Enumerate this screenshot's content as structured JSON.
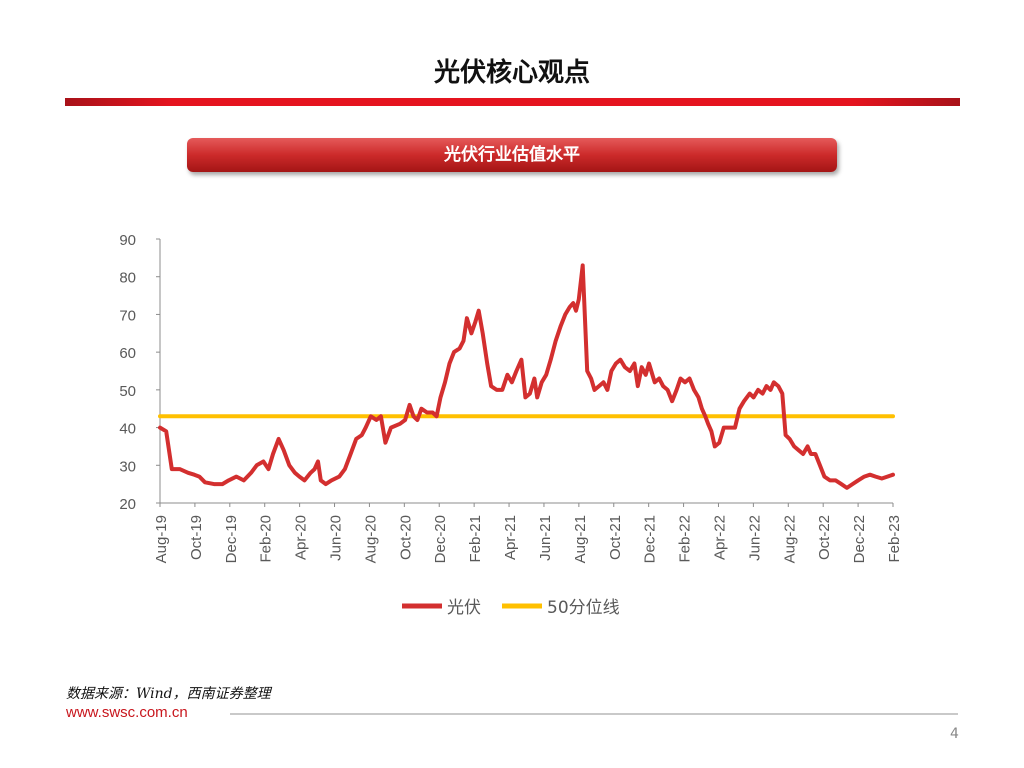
{
  "slide": {
    "title": "光伏核心观点",
    "banner": "光伏行业估值水平",
    "source": "数据来源：Wind，西南证券整理",
    "website": "www.swsc.com.cn",
    "page_number": "4"
  },
  "colors": {
    "accent_red": "#e5141f",
    "series_red": "#d32f2f",
    "median_yellow": "#ffc000",
    "website_red": "#c8161d"
  },
  "chart_data": {
    "type": "line",
    "title": "",
    "xlabel": "",
    "ylabel": "",
    "ylim": [
      20,
      90
    ],
    "yticks": [
      20,
      30,
      40,
      50,
      60,
      70,
      80,
      90
    ],
    "grid": false,
    "legend_position": "bottom",
    "x_tick_labels": [
      "Aug-19",
      "Oct-19",
      "Dec-19",
      "Feb-20",
      "Apr-20",
      "Jun-20",
      "Aug-20",
      "Oct-20",
      "Dec-20",
      "Feb-21",
      "Apr-21",
      "Jun-21",
      "Aug-21",
      "Oct-21",
      "Dec-21",
      "Feb-22",
      "Apr-22",
      "Jun-22",
      "Aug-22",
      "Oct-22",
      "Dec-22",
      "Feb-23"
    ],
    "series": [
      {
        "name": "光伏",
        "color": "#d32f2f",
        "points": [
          [
            "2019-08-01",
            40
          ],
          [
            "2019-08-12",
            39
          ],
          [
            "2019-08-22",
            29
          ],
          [
            "2019-09-05",
            29
          ],
          [
            "2019-09-20",
            28
          ],
          [
            "2019-10-01",
            27.5
          ],
          [
            "2019-10-10",
            27
          ],
          [
            "2019-10-20",
            25.5
          ],
          [
            "2019-11-05",
            25
          ],
          [
            "2019-11-20",
            25
          ],
          [
            "2019-12-01",
            26
          ],
          [
            "2019-12-15",
            27
          ],
          [
            "2019-12-28",
            26
          ],
          [
            "2020-01-10",
            28
          ],
          [
            "2020-01-20",
            30
          ],
          [
            "2020-02-01",
            31
          ],
          [
            "2020-02-10",
            29
          ],
          [
            "2020-02-18",
            33
          ],
          [
            "2020-02-28",
            37
          ],
          [
            "2020-03-08",
            34
          ],
          [
            "2020-03-18",
            30
          ],
          [
            "2020-03-28",
            28
          ],
          [
            "2020-04-05",
            27
          ],
          [
            "2020-04-14",
            26
          ],
          [
            "2020-04-25",
            28
          ],
          [
            "2020-05-02",
            29
          ],
          [
            "2020-05-08",
            31
          ],
          [
            "2020-05-13",
            26
          ],
          [
            "2020-05-22",
            25
          ],
          [
            "2020-06-01",
            26
          ],
          [
            "2020-06-15",
            27
          ],
          [
            "2020-06-25",
            29
          ],
          [
            "2020-07-05",
            33
          ],
          [
            "2020-07-15",
            37
          ],
          [
            "2020-07-25",
            38
          ],
          [
            "2020-08-01",
            40
          ],
          [
            "2020-08-10",
            43
          ],
          [
            "2020-08-20",
            42
          ],
          [
            "2020-08-28",
            43
          ],
          [
            "2020-09-05",
            36
          ],
          [
            "2020-09-15",
            40
          ],
          [
            "2020-10-01",
            41
          ],
          [
            "2020-10-10",
            42
          ],
          [
            "2020-10-18",
            46
          ],
          [
            "2020-10-25",
            43
          ],
          [
            "2020-11-01",
            42
          ],
          [
            "2020-11-08",
            45
          ],
          [
            "2020-11-18",
            44
          ],
          [
            "2020-11-28",
            44
          ],
          [
            "2020-12-05",
            43
          ],
          [
            "2020-12-12",
            48
          ],
          [
            "2020-12-20",
            52
          ],
          [
            "2020-12-28",
            57
          ],
          [
            "2021-01-05",
            60
          ],
          [
            "2021-01-15",
            61
          ],
          [
            "2021-01-22",
            63
          ],
          [
            "2021-01-28",
            69
          ],
          [
            "2021-02-05",
            65
          ],
          [
            "2021-02-12",
            68
          ],
          [
            "2021-02-18",
            71
          ],
          [
            "2021-02-25",
            65
          ],
          [
            "2021-03-05",
            57
          ],
          [
            "2021-03-12",
            51
          ],
          [
            "2021-03-22",
            50
          ],
          [
            "2021-04-01",
            50
          ],
          [
            "2021-04-10",
            54
          ],
          [
            "2021-04-18",
            52
          ],
          [
            "2021-04-26",
            55
          ],
          [
            "2021-05-05",
            58
          ],
          [
            "2021-05-12",
            48
          ],
          [
            "2021-05-20",
            49
          ],
          [
            "2021-05-28",
            53
          ],
          [
            "2021-06-02",
            48
          ],
          [
            "2021-06-10",
            52
          ],
          [
            "2021-06-18",
            54
          ],
          [
            "2021-06-26",
            58
          ],
          [
            "2021-07-05",
            63
          ],
          [
            "2021-07-14",
            67
          ],
          [
            "2021-07-22",
            70
          ],
          [
            "2021-07-30",
            72
          ],
          [
            "2021-08-05",
            73
          ],
          [
            "2021-08-10",
            71
          ],
          [
            "2021-08-15",
            74
          ],
          [
            "2021-08-22",
            83
          ],
          [
            "2021-08-30",
            55
          ],
          [
            "2021-09-06",
            53
          ],
          [
            "2021-09-12",
            50
          ],
          [
            "2021-09-20",
            51
          ],
          [
            "2021-09-28",
            52
          ],
          [
            "2021-10-05",
            50
          ],
          [
            "2021-10-12",
            55
          ],
          [
            "2021-10-20",
            57
          ],
          [
            "2021-10-28",
            58
          ],
          [
            "2021-11-05",
            56
          ],
          [
            "2021-11-14",
            55
          ],
          [
            "2021-11-22",
            57
          ],
          [
            "2021-11-28",
            51
          ],
          [
            "2021-12-05",
            56
          ],
          [
            "2021-12-12",
            54
          ],
          [
            "2021-12-18",
            57
          ],
          [
            "2021-12-28",
            52
          ],
          [
            "2022-01-05",
            53
          ],
          [
            "2022-01-12",
            51
          ],
          [
            "2022-01-20",
            50
          ],
          [
            "2022-01-28",
            47
          ],
          [
            "2022-02-05",
            50
          ],
          [
            "2022-02-12",
            53
          ],
          [
            "2022-02-20",
            52
          ],
          [
            "2022-02-28",
            53
          ],
          [
            "2022-03-08",
            50
          ],
          [
            "2022-03-16",
            48
          ],
          [
            "2022-03-22",
            45
          ],
          [
            "2022-03-28",
            43
          ],
          [
            "2022-04-02",
            41
          ],
          [
            "2022-04-08",
            39
          ],
          [
            "2022-04-14",
            35
          ],
          [
            "2022-04-22",
            36
          ],
          [
            "2022-04-30",
            40
          ],
          [
            "2022-05-10",
            40
          ],
          [
            "2022-05-20",
            40
          ],
          [
            "2022-05-28",
            45
          ],
          [
            "2022-06-05",
            47
          ],
          [
            "2022-06-15",
            49
          ],
          [
            "2022-06-22",
            48
          ],
          [
            "2022-06-30",
            50
          ],
          [
            "2022-07-08",
            49
          ],
          [
            "2022-07-15",
            51
          ],
          [
            "2022-07-22",
            50
          ],
          [
            "2022-07-28",
            52
          ],
          [
            "2022-08-05",
            51
          ],
          [
            "2022-08-12",
            49
          ],
          [
            "2022-08-18",
            38
          ],
          [
            "2022-08-25",
            37
          ],
          [
            "2022-09-02",
            35
          ],
          [
            "2022-09-10",
            34
          ],
          [
            "2022-09-18",
            33
          ],
          [
            "2022-09-26",
            35
          ],
          [
            "2022-10-02",
            33
          ],
          [
            "2022-10-10",
            33
          ],
          [
            "2022-10-18",
            30
          ],
          [
            "2022-10-26",
            27
          ],
          [
            "2022-11-05",
            26
          ],
          [
            "2022-11-15",
            26
          ],
          [
            "2022-11-25",
            25
          ],
          [
            "2022-12-05",
            24
          ],
          [
            "2022-12-15",
            25
          ],
          [
            "2022-12-25",
            26
          ],
          [
            "2023-01-05",
            27
          ],
          [
            "2023-01-15",
            27.5
          ],
          [
            "2023-01-25",
            27
          ],
          [
            "2023-02-05",
            26.5
          ],
          [
            "2023-02-15",
            27
          ],
          [
            "2023-02-25",
            27.5
          ]
        ]
      },
      {
        "name": "50分位线",
        "color": "#ffc000",
        "points": [
          [
            "2019-08-01",
            43
          ],
          [
            "2023-02-25",
            43
          ]
        ]
      }
    ]
  }
}
